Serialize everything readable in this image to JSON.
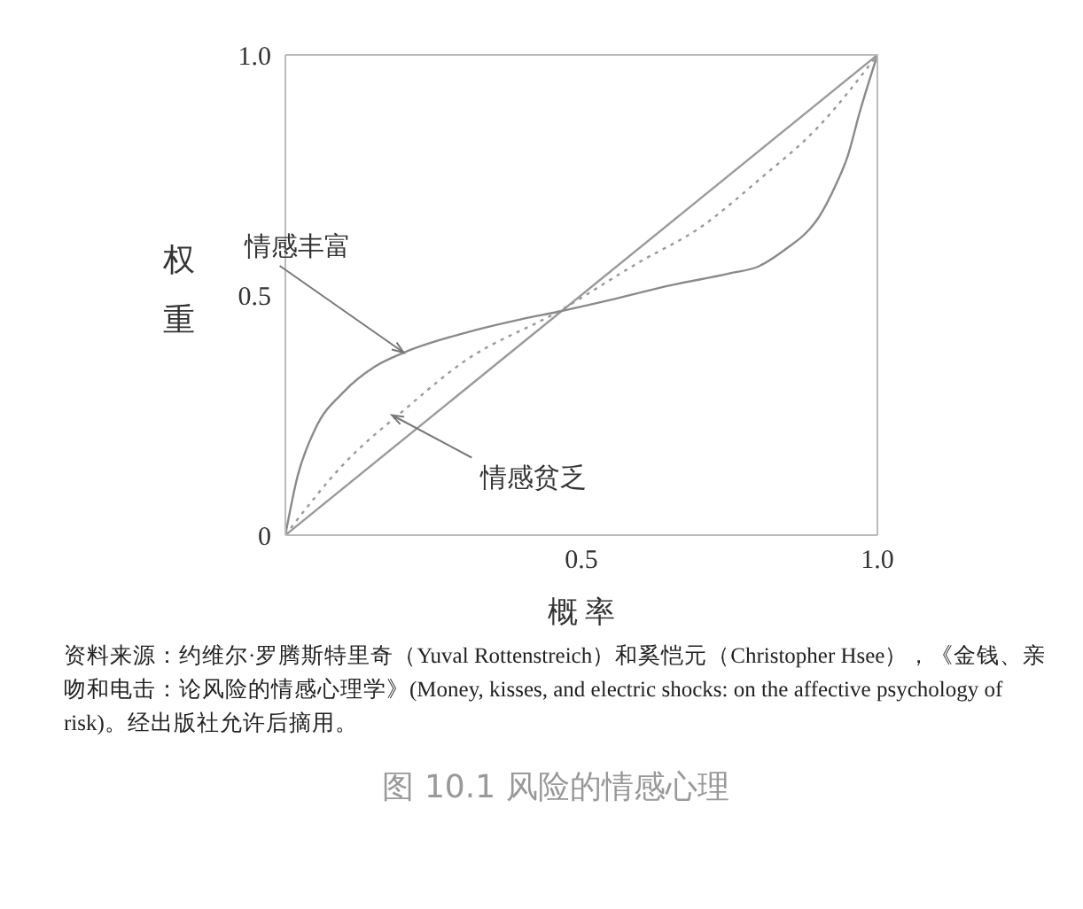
{
  "chart_data": {
    "type": "line",
    "title": "图 10.1 风险的情感心理",
    "xlabel": "概 率",
    "ylabel": "权重",
    "xlim": [
      0,
      1
    ],
    "ylim": [
      0,
      1
    ],
    "xticks": [
      0.5,
      {
        "value": 1,
        "label": "1.0"
      }
    ],
    "yticks": [
      0,
      0.5,
      {
        "value": 1,
        "label": "1.0"
      }
    ],
    "series": [
      {
        "color": "#9a9a9a",
        "line_style": "solid",
        "x": [
          0,
          1
        ],
        "values": [
          0,
          1
        ]
      },
      {
        "color": "#9a9a9a",
        "line_style": "dotted",
        "x": [
          0,
          0.1,
          0.2,
          0.3,
          0.46,
          0.6,
          0.7,
          0.8,
          0.9,
          1
        ],
        "values": [
          0,
          0.15,
          0.26,
          0.36,
          0.465,
          0.57,
          0.64,
          0.74,
          0.85,
          1
        ]
      },
      {
        "color": "#8a8a8a",
        "line_style": "solid",
        "x": [
          0,
          0.02,
          0.05,
          0.1,
          0.15,
          0.2,
          0.3,
          0.4,
          0.46,
          0.55,
          0.65,
          0.75,
          0.8,
          0.85,
          0.88,
          0.9,
          0.93,
          0.95,
          0.97,
          1
        ],
        "values": [
          0,
          0.12,
          0.22,
          0.3,
          0.35,
          0.38,
          0.42,
          0.45,
          0.465,
          0.49,
          0.52,
          0.545,
          0.56,
          0.6,
          0.63,
          0.66,
          0.73,
          0.79,
          0.88,
          1
        ]
      }
    ],
    "annotations": [
      {
        "text": "情感丰富",
        "x": 0.2,
        "y": 0.38
      },
      {
        "text": "情感贫乏",
        "x": 0.18,
        "y": 0.25
      },
      "资料来源：约维尔·罗腾斯特里奇（Yuval Rottenstreich）和奚恺元（Christopher Hsee），《金钱、亲吻和电击：论风险的情感心理学》(Money, kisses, and electric shocks: on the affective psychology of risk)。经出版社允许后摘用。"
    ]
  }
}
